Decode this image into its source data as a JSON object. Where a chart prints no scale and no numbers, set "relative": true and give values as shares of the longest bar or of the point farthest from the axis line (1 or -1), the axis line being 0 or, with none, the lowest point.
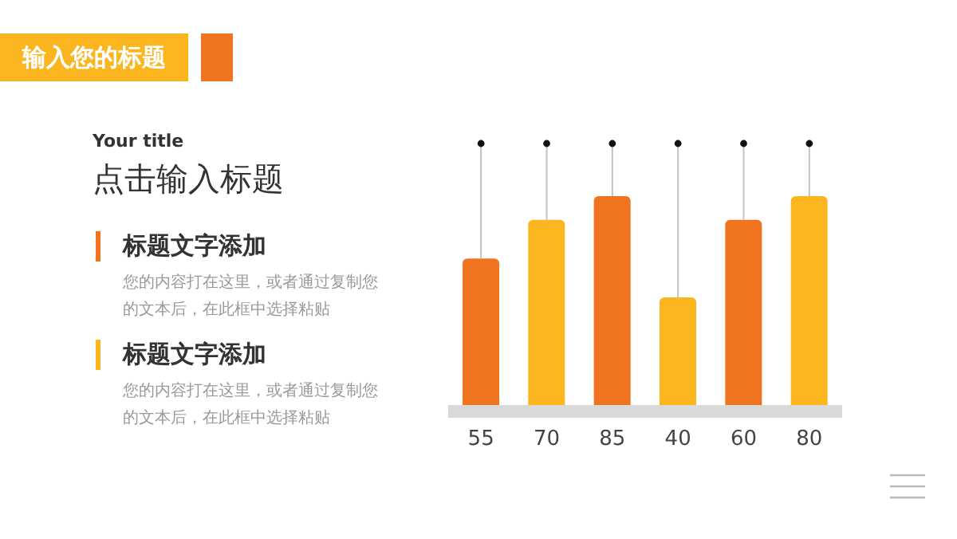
{
  "chart_data": {
    "type": "bar",
    "title": "输入您的标题",
    "subtitle": "Your title",
    "annotations": [
      "点击输入标题",
      "标题文字添加",
      "您的内容打在这里，或者通过复制您的文本后，在此框中选择粘贴",
      "标题文字添加",
      "您的内容打在这里，或者通过复制您的文本后，在此框中选择粘贴"
    ],
    "categories": [
      "55",
      "70",
      "85",
      "40",
      "60",
      "80"
    ],
    "values": [
      0.71,
      0.89,
      1,
      0.53,
      0.89,
      1
    ],
    "colors": [
      "#f07320",
      "#fbb51f",
      "#f07320",
      "#fbb51f",
      "#f07320",
      "#fbb51f"
    ],
    "relative": true,
    "grid": false,
    "legend": false
  }
}
